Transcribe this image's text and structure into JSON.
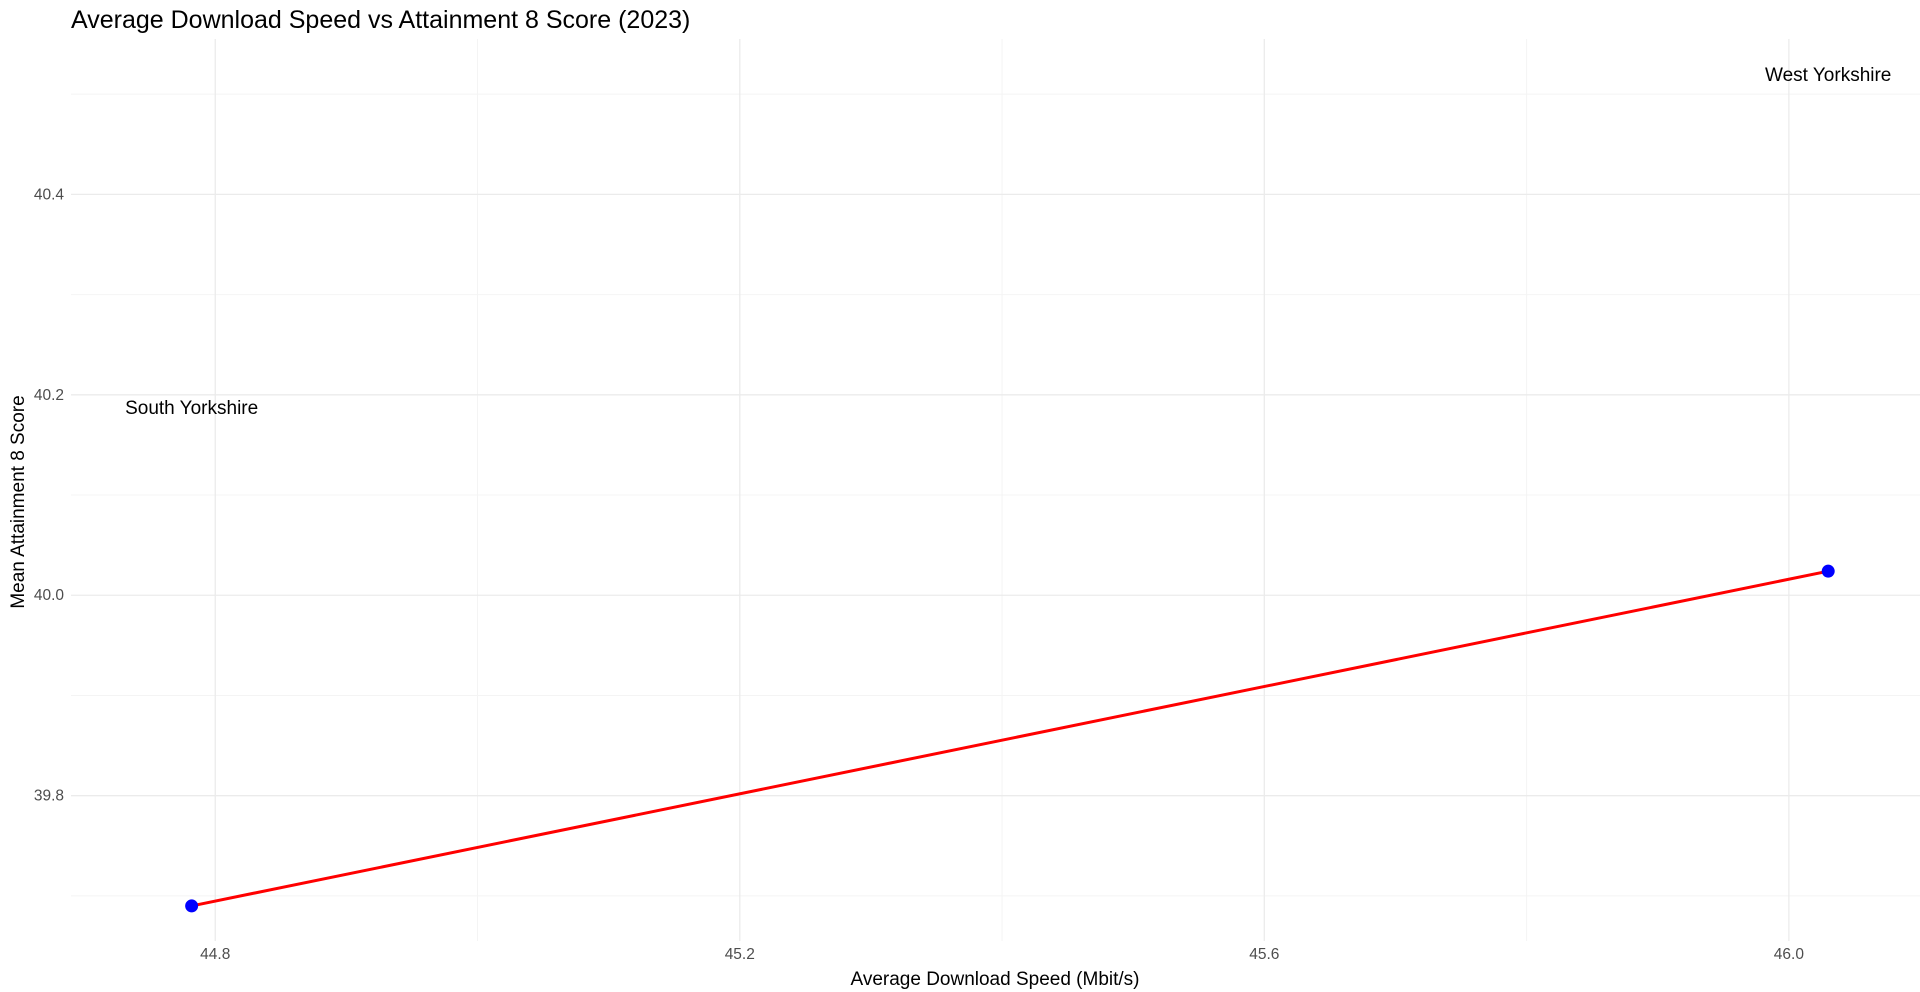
{
  "chart_data": {
    "type": "scatter",
    "title": "Average Download Speed vs Attainment 8 Score (2023)",
    "xlabel": "Average Download Speed (Mbit/s)",
    "ylabel": "Mean Attainment 8 Score",
    "xlim": [
      44.69,
      46.1
    ],
    "ylim": [
      39.655,
      40.555
    ],
    "x_ticks": [
      44.8,
      45.2,
      45.6,
      46.0
    ],
    "x_tick_labels": [
      "44.8",
      "45.2",
      "45.6",
      "46.0"
    ],
    "y_ticks": [
      39.8,
      40.0,
      40.2,
      40.4
    ],
    "y_tick_labels": [
      "39.8",
      "40.0",
      "40.2",
      "40.4"
    ],
    "x_minor_ticks": [
      45.0,
      45.4,
      45.8
    ],
    "y_minor_ticks": [
      39.7,
      39.9,
      40.1,
      40.3,
      40.5
    ],
    "grid": true,
    "points": [
      {
        "x": 44.782,
        "y": 39.69,
        "label": "South Yorkshire",
        "label_x": 44.782,
        "label_y": 40.188
      },
      {
        "x": 46.03,
        "y": 40.024,
        "label": "West Yorkshire",
        "label_x": 46.03,
        "label_y": 40.52
      }
    ],
    "fit_line": {
      "x": [
        44.782,
        46.03
      ],
      "y": [
        39.69,
        40.024
      ]
    },
    "colors": {
      "point": "#0000ff",
      "fit_line": "#ff0000",
      "grid_major": "#ebebeb",
      "grid_minor": "#f4f4f4",
      "text": "#000000",
      "tick_text": "#4d4d4d"
    }
  }
}
